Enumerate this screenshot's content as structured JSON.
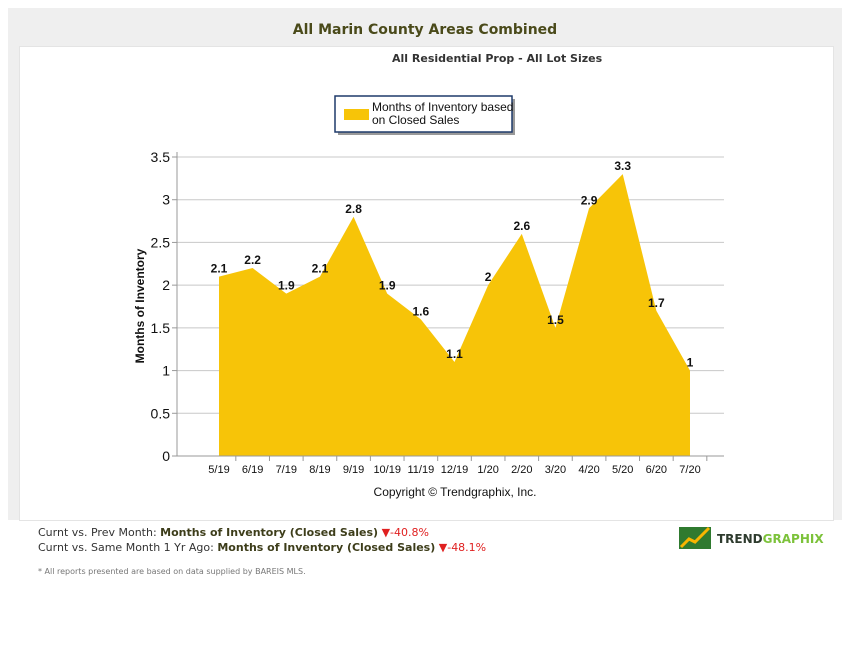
{
  "title": "All Marin County Areas Combined",
  "subtitle": "All Residential Prop - All Lot Sizes",
  "chart_data": {
    "type": "area",
    "categories": [
      "5/19",
      "6/19",
      "7/19",
      "8/19",
      "9/19",
      "10/19",
      "11/19",
      "12/19",
      "1/20",
      "2/20",
      "3/20",
      "4/20",
      "5/20",
      "6/20",
      "7/20"
    ],
    "series": [
      {
        "name": "Months of Inventory based on Closed Sales",
        "values": [
          2.1,
          2.2,
          1.9,
          2.1,
          2.8,
          1.9,
          1.6,
          1.1,
          2,
          2.6,
          1.5,
          2.9,
          3.3,
          1.7,
          1
        ],
        "color": "#f7c408"
      }
    ],
    "legend_line1": "Months of Inventory based",
    "legend_line2": "on Closed Sales",
    "legend_placement": "top",
    "ylabel": "Months of Inventory",
    "xlabel": "Copyright © Trendgraphix, Inc.",
    "ylim": [
      0,
      3.5
    ],
    "yticks": [
      0,
      0.5,
      1,
      1.5,
      2,
      2.5,
      3,
      3.5
    ],
    "grid": true
  },
  "footer": {
    "line1": {
      "prefix": "Curnt vs. Prev Month: ",
      "metric": "Months of Inventory (Closed Sales)",
      "change": "-40.8%"
    },
    "line2": {
      "prefix": "Curnt vs. Same Month 1 Yr Ago: ",
      "metric": "Months of Inventory (Closed Sales)",
      "change": "-48.1%"
    },
    "note": "* All reports presented are based on data supplied by BAREIS MLS.",
    "logo_part1": "TREND",
    "logo_part2": "GRAPHIX"
  }
}
